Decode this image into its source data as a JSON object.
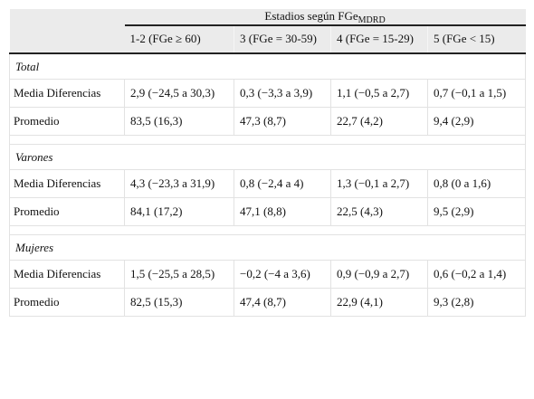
{
  "header": {
    "group_title": "Estadios según FGe",
    "group_subscript": "MDRD",
    "columns": [
      "1-2 (FGe ≥ 60)",
      "3 (FGe = 30-59)",
      "4 (FGe = 15-29)",
      "5 (FGe < 15)"
    ]
  },
  "sections": [
    {
      "title": "Total",
      "rows": [
        {
          "label": "Media Diferencias",
          "cells": [
            "2,9 (−24,5 a 30,3)",
            "0,3 (−3,3 a 3,9)",
            "1,1 (−0,5 a 2,7)",
            "0,7 (−0,1 a 1,5)"
          ]
        },
        {
          "label": "Promedio",
          "cells": [
            "83,5 (16,3)",
            "47,3 (8,7)",
            "22,7 (4,2)",
            "9,4 (2,9)"
          ]
        }
      ]
    },
    {
      "title": "Varones",
      "rows": [
        {
          "label": "Media Diferencias",
          "cells": [
            "4,3 (−23,3 a 31,9)",
            "0,8 (−2,4 a 4)",
            "1,3 (−0,1 a 2,7)",
            "0,8 (0 a 1,6)"
          ]
        },
        {
          "label": "Promedio",
          "cells": [
            "84,1 (17,2)",
            "47,1 (8,8)",
            "22,5 (4,3)",
            "9,5 (2,9)"
          ]
        }
      ]
    },
    {
      "title": "Mujeres",
      "rows": [
        {
          "label": "Media Diferencias",
          "cells": [
            "1,5 (−25,5 a 28,5)",
            "−0,2 (−4 a 3,6)",
            "0,9 (−0,9 a 2,7)",
            "0,6 (−0,2 a 1,4)"
          ]
        },
        {
          "label": "Promedio",
          "cells": [
            "82,5 (15,3)",
            "47,4 (8,7)",
            "22,9 (4,1)",
            "9,3 (2,8)"
          ]
        }
      ]
    }
  ]
}
